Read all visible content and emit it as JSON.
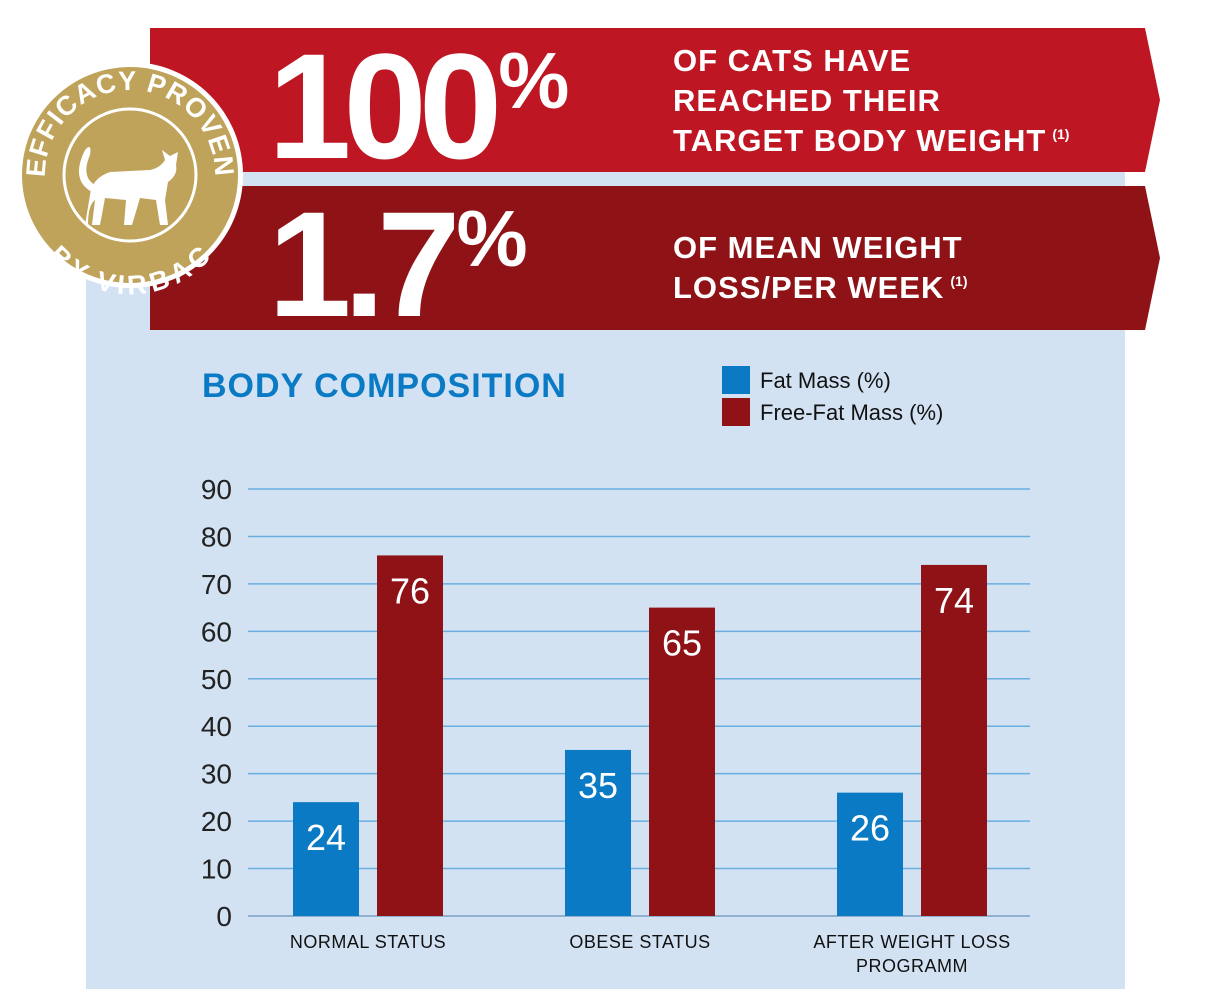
{
  "badge": {
    "top_text": "EFFICACY PROVEN",
    "bottom_text": "BY VIRBAC"
  },
  "banners": [
    {
      "stat_number": "100",
      "stat_unit": "%",
      "lines": [
        "OF CATS HAVE",
        "REACHED THEIR",
        "TARGET BODY WEIGHT"
      ],
      "note_ref": "(1)"
    },
    {
      "stat_number": "1.7",
      "stat_unit": "%",
      "lines": [
        "OF MEAN WEIGHT",
        "LOSS/PER WEEK"
      ],
      "note_ref": "(1)"
    }
  ],
  "chart_data": {
    "type": "bar",
    "title": "BODY COMPOSITION",
    "categories": [
      "NORMAL STATUS",
      "OBESE STATUS",
      "AFTER WEIGHT LOSS PROGRAMM"
    ],
    "series": [
      {
        "name": "Fat Mass (%)",
        "color": "#0a7ac4",
        "values": [
          24,
          35,
          26
        ]
      },
      {
        "name": "Free-Fat Mass (%)",
        "color": "#8e1216",
        "values": [
          76,
          65,
          74
        ]
      }
    ],
    "ylim": [
      0,
      90
    ],
    "yticks": [
      0,
      10,
      20,
      30,
      40,
      50,
      60,
      70,
      80,
      90
    ],
    "grid": true
  }
}
